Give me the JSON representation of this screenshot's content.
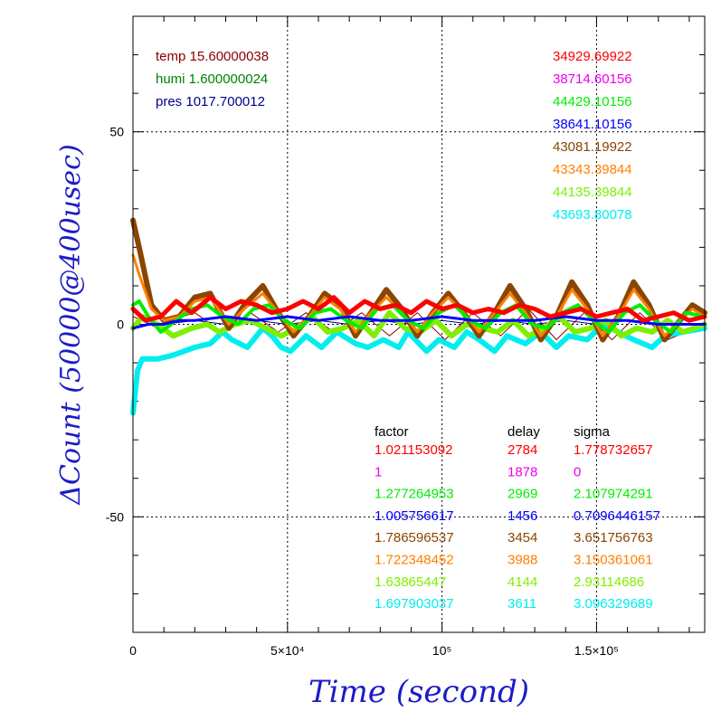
{
  "chart_data": {
    "type": "line",
    "xlabel": "Time (second)",
    "ylabel": "ΔCount (50000@400usec)",
    "xlim": [
      0,
      185000
    ],
    "ylim": [
      -80,
      80
    ],
    "x_ticks": [
      {
        "value": 0,
        "label": "0"
      },
      {
        "value": 50000,
        "label": "5×10⁴"
      },
      {
        "value": 100000,
        "label": "10⁵"
      },
      {
        "value": 150000,
        "label": "1.5×10⁵"
      }
    ],
    "y_ticks": [
      {
        "value": 50,
        "label": "50"
      },
      {
        "value": 0,
        "label": "0"
      },
      {
        "value": -50,
        "label": "-50"
      }
    ],
    "env_legend": [
      {
        "label": "temp 15.60000038",
        "color": "#8b0000"
      },
      {
        "label": "humi 1.600000024",
        "color": "#008000"
      },
      {
        "label": "pres 1017.700012",
        "color": "#00008b"
      }
    ],
    "counts_legend": [
      {
        "label": "34929.69922",
        "color": "#ff0000"
      },
      {
        "label": "38714.60156",
        "color": "#ee00ee"
      },
      {
        "label": "44429.10156",
        "color": "#00ee00"
      },
      {
        "label": "38641.10156",
        "color": "#0000ff"
      },
      {
        "label": "43081.19922",
        "color": "#8b4500"
      },
      {
        "label": "43343.39844",
        "color": "#ff8000"
      },
      {
        "label": "44135.39844",
        "color": "#80ee00"
      },
      {
        "label": "43693.80078",
        "color": "#00eeee"
      }
    ],
    "table": {
      "headers": [
        "factor",
        "delay",
        "sigma"
      ],
      "rows": [
        {
          "factor": "1.021153092",
          "delay": "2784",
          "sigma": "1.778732657",
          "color": "#ff0000"
        },
        {
          "factor": "1",
          "delay": "1878",
          "sigma": "0",
          "color": "#ee00ee"
        },
        {
          "factor": "1.277264953",
          "delay": "2969",
          "sigma": "2.107974291",
          "color": "#00ee00"
        },
        {
          "factor": "1.005756617",
          "delay": "1456",
          "sigma": "0.7096446157",
          "color": "#0000ff"
        },
        {
          "factor": "1.786596537",
          "delay": "3454",
          "sigma": "3.651756763",
          "color": "#8b4500"
        },
        {
          "factor": "1.722348452",
          "delay": "3988",
          "sigma": "3.150361061",
          "color": "#ff8000"
        },
        {
          "factor": "1.63865447",
          "delay": "4144",
          "sigma": "2.93114686",
          "color": "#80ee00"
        },
        {
          "factor": "1.697903037",
          "delay": "3611",
          "sigma": "3.096329689",
          "color": "#00eeee"
        }
      ]
    },
    "series": [
      {
        "color": "#8b0000",
        "width": 1,
        "x": [
          0,
          3000,
          8000,
          12000,
          20000,
          29000,
          38000,
          47000,
          56000,
          65000,
          74000,
          83000,
          92000,
          101000,
          110000,
          119000,
          128000,
          137000,
          146000,
          155000,
          164000,
          173000,
          185000
        ],
        "y": [
          2,
          1,
          -1,
          1,
          3,
          -2,
          3,
          -2,
          3,
          -2,
          3,
          -3,
          3,
          -4,
          3,
          -3,
          4,
          -4,
          3,
          -4,
          3,
          -4,
          0
        ]
      },
      {
        "color": "#00008b",
        "width": 1,
        "x": [
          0,
          10000,
          20000,
          30000,
          40000,
          50000,
          60000,
          70000,
          80000,
          90000,
          100000,
          110000,
          120000,
          130000,
          140000,
          150000,
          160000,
          170000,
          185000
        ],
        "y": [
          0,
          0,
          1,
          0,
          1,
          0,
          1,
          0,
          1,
          0,
          1,
          0,
          1,
          0,
          1,
          0,
          1,
          0,
          0
        ]
      },
      {
        "color": "#00eeee",
        "width": 6,
        "x": [
          0,
          1500,
          3000,
          8000,
          13000,
          20000,
          25000,
          29000,
          32000,
          37000,
          42000,
          45000,
          48000,
          51000,
          56000,
          61000,
          66000,
          72000,
          76000,
          81000,
          86000,
          89000,
          95000,
          99000,
          104000,
          108000,
          112000,
          117000,
          121000,
          127000,
          132000,
          137000,
          141000,
          147000,
          152000,
          157000,
          162000,
          168000,
          172000,
          178000,
          185000
        ],
        "y": [
          -23,
          -12,
          -9,
          -9,
          -8,
          -6,
          -5,
          -2,
          -4,
          -6,
          -1,
          -3,
          -6,
          -7,
          -3,
          -6,
          -2,
          -5,
          -6,
          -4,
          -6,
          -2,
          -7,
          -4,
          -6,
          -2,
          -4,
          -7,
          -3,
          -5,
          -2,
          -6,
          -3,
          -4,
          0,
          -2,
          -4,
          -6,
          -3,
          -2,
          -1
        ]
      },
      {
        "color": "#80ee00",
        "width": 6,
        "x": [
          0,
          3000,
          8000,
          13000,
          19000,
          24000,
          28000,
          33000,
          38000,
          43000,
          48000,
          53000,
          58000,
          63000,
          68000,
          73000,
          78000,
          83000,
          88000,
          93000,
          98000,
          103000,
          108000,
          113000,
          118000,
          123000,
          128000,
          133000,
          138000,
          143000,
          148000,
          153000,
          158000,
          163000,
          168000,
          173000,
          178000,
          185000
        ],
        "y": [
          -1,
          2,
          0,
          -3,
          -1,
          0,
          -2,
          0,
          1,
          -1,
          -3,
          -1,
          2,
          -2,
          -1,
          1,
          -3,
          3,
          -1,
          -2,
          1,
          -3,
          0,
          -1,
          -2,
          1,
          -3,
          -1,
          2,
          -2,
          -1,
          1,
          -3,
          -1,
          -2,
          1,
          -2,
          0
        ]
      },
      {
        "color": "#8b4500",
        "width": 6,
        "x": [
          0,
          2000,
          6000,
          10000,
          15000,
          20000,
          25000,
          31000,
          36000,
          42000,
          47000,
          52000,
          57000,
          62000,
          67000,
          72000,
          77000,
          82000,
          87000,
          92000,
          97000,
          102000,
          107000,
          112000,
          117000,
          122000,
          127000,
          132000,
          137000,
          142000,
          147000,
          152000,
          157000,
          162000,
          167000,
          172000,
          177000,
          181000,
          185000
        ],
        "y": [
          27,
          20,
          5,
          1,
          2,
          7,
          8,
          -1,
          5,
          10,
          3,
          -3,
          2,
          8,
          5,
          -3,
          3,
          9,
          4,
          -3,
          3,
          8,
          3,
          -3,
          3,
          10,
          4,
          -4,
          2,
          11,
          5,
          -4,
          2,
          11,
          5,
          -4,
          1,
          5,
          3
        ]
      },
      {
        "color": "#ff8000",
        "width": 3,
        "x": [
          0,
          2000,
          6000,
          10000,
          15000,
          20000,
          25000,
          31000,
          36000,
          42000,
          47000,
          52000,
          57000,
          62000,
          67000,
          72000,
          77000,
          82000,
          87000,
          92000,
          97000,
          102000,
          107000,
          112000,
          117000,
          122000,
          127000,
          132000,
          137000,
          142000,
          147000,
          152000,
          157000,
          162000,
          167000,
          172000,
          177000,
          181000,
          185000
        ],
        "y": [
          18,
          13,
          4,
          1,
          2,
          6,
          7,
          0,
          4,
          8,
          3,
          -2,
          2,
          7,
          4,
          -2,
          3,
          7,
          3,
          -2,
          3,
          7,
          3,
          -2,
          3,
          8,
          3,
          -3,
          2,
          9,
          4,
          -3,
          2,
          9,
          4,
          -3,
          1,
          4,
          2
        ]
      },
      {
        "color": "#00ee00",
        "width": 4,
        "x": [
          0,
          2000,
          5000,
          9000,
          14000,
          19000,
          24000,
          29000,
          34000,
          39000,
          44000,
          49000,
          54000,
          59000,
          64000,
          69000,
          74000,
          79000,
          84000,
          89000,
          94000,
          99000,
          104000,
          109000,
          114000,
          119000,
          124000,
          129000,
          134000,
          139000,
          144000,
          149000,
          154000,
          159000,
          164000,
          169000,
          174000,
          179000,
          185000
        ],
        "y": [
          5,
          6,
          2,
          -2,
          1,
          4,
          5,
          2,
          0,
          4,
          5,
          1,
          -1,
          3,
          4,
          1,
          -1,
          4,
          5,
          1,
          -1,
          3,
          5,
          1,
          -1,
          3,
          5,
          0,
          -1,
          3,
          5,
          1,
          -2,
          3,
          5,
          1,
          -2,
          3,
          2
        ]
      },
      {
        "color": "#0000ff",
        "width": 3,
        "x": [
          0,
          5000,
          10000,
          15000,
          20000,
          30000,
          40000,
          50000,
          60000,
          70000,
          80000,
          90000,
          100000,
          110000,
          120000,
          130000,
          140000,
          150000,
          160000,
          170000,
          185000
        ],
        "y": [
          -1,
          0,
          0,
          1,
          1,
          2,
          1,
          2,
          1,
          2,
          1,
          1,
          2,
          1,
          1,
          1,
          2,
          1,
          1,
          0,
          0
        ]
      },
      {
        "color": "#ff0000",
        "width": 5,
        "x": [
          0,
          4000,
          9000,
          14000,
          19000,
          25000,
          30000,
          35000,
          40000,
          45000,
          50000,
          55000,
          60000,
          65000,
          70000,
          75000,
          80000,
          85000,
          90000,
          95000,
          100000,
          105000,
          110000,
          115000,
          120000,
          125000,
          130000,
          135000,
          140000,
          145000,
          150000,
          155000,
          160000,
          165000,
          170000,
          175000,
          180000,
          185000
        ],
        "y": [
          4,
          1,
          2,
          6,
          3,
          7,
          4,
          6,
          5,
          3,
          4,
          6,
          4,
          7,
          3,
          6,
          4,
          5,
          3,
          6,
          4,
          5,
          3,
          4,
          3,
          5,
          4,
          2,
          3,
          4,
          2,
          3,
          4,
          1,
          2,
          3,
          1,
          2
        ]
      }
    ]
  }
}
